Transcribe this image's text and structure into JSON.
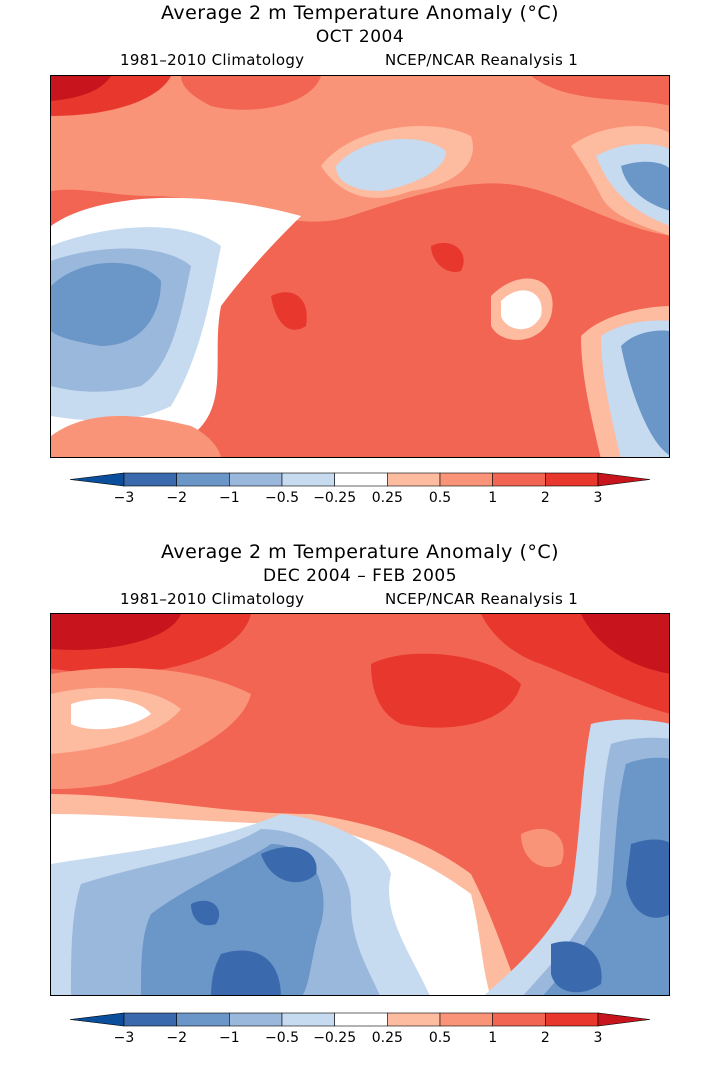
{
  "panels": [
    {
      "title": "Average 2 m Temperature Anomaly (°C)",
      "period": "OCT 2004",
      "climatology": "1981–2010 Climatology",
      "source": "NCEP/NCAR Reanalysis 1"
    },
    {
      "title": "Average 2 m Temperature Anomaly (°C)",
      "period": "DEC 2004 – FEB 2005",
      "climatology": "1981–2010 Climatology",
      "source": "NCEP/NCAR Reanalysis 1"
    }
  ],
  "colorbar": {
    "labels": [
      "−3",
      "−2",
      "−1",
      "−0.5",
      "−0.25",
      "0.25",
      "0.5",
      "1",
      "2",
      "3"
    ],
    "colors": [
      "#0b4f9c",
      "#3a6aad",
      "#6a96c8",
      "#9ab7dc",
      "#c6daf0",
      "#ffffff",
      "#fdbba0",
      "#fa9479",
      "#f26552",
      "#e8372c",
      "#c8151d"
    ],
    "extend": "both"
  }
}
